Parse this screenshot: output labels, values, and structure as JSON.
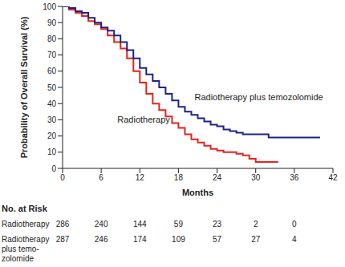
{
  "chart_data": {
    "type": "line",
    "line_style": "step",
    "legend": false,
    "grid": false,
    "x_label": "Months",
    "y_label": "Probability of Overall Survival (%)",
    "xlim": [
      0,
      42
    ],
    "xticks": [
      0,
      6,
      12,
      18,
      24,
      30,
      36,
      42
    ],
    "ylim": [
      0,
      100
    ],
    "yticks": [
      0,
      10,
      20,
      30,
      40,
      50,
      60,
      70,
      80,
      90,
      100
    ],
    "series": [
      {
        "name": "Radiotherapy",
        "color": "#e8231c",
        "x": [
          0,
          1,
          2,
          3,
          4,
          5,
          6,
          7,
          8,
          9,
          10,
          11,
          12,
          13,
          14,
          15,
          16,
          17,
          18,
          19,
          20,
          21,
          22,
          23,
          24,
          25,
          26,
          27,
          28,
          29,
          30,
          31,
          32,
          33.5
        ],
        "values": [
          100,
          98,
          96,
          94,
          91,
          89,
          86,
          82,
          78,
          74,
          68,
          60,
          53,
          46,
          40,
          36,
          32,
          28,
          25,
          21,
          18,
          16,
          14,
          12,
          11,
          10,
          10,
          9,
          8,
          6,
          4,
          4,
          4,
          4
        ]
      },
      {
        "name": "Radiotherapy plus temozolomide",
        "color": "#1c2585",
        "x": [
          0,
          1,
          2,
          3,
          4,
          5,
          6,
          7,
          8,
          9,
          10,
          11,
          12,
          13,
          14,
          15,
          16,
          17,
          18,
          19,
          20,
          21,
          22,
          23,
          24,
          25,
          26,
          27,
          28,
          29,
          30,
          31,
          32,
          34,
          36,
          38,
          40
        ],
        "values": [
          100,
          99,
          97,
          96,
          93,
          90,
          87,
          85,
          82,
          78,
          73,
          68,
          62,
          58,
          54,
          50,
          46,
          42,
          38,
          35,
          33,
          31,
          29,
          27,
          26,
          24,
          23,
          22,
          21,
          21,
          21,
          21,
          19,
          19,
          19,
          19,
          19
        ]
      }
    ],
    "risk_table": {
      "title": "No. at Risk",
      "x": [
        0,
        6,
        12,
        18,
        24,
        30,
        36
      ],
      "rows": [
        {
          "label": [
            "Radiotherapy"
          ],
          "values": [
            286,
            240,
            144,
            59,
            23,
            2,
            0
          ]
        },
        {
          "label": [
            "Radiotherapy",
            "plus temo-",
            "zolomide"
          ],
          "values": [
            287,
            246,
            174,
            109,
            57,
            27,
            4
          ]
        }
      ]
    }
  }
}
